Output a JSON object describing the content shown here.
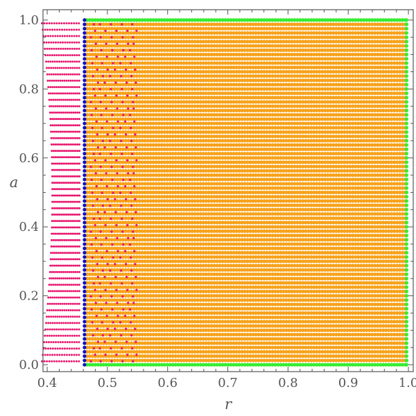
{
  "chart_data": {
    "type": "scatter",
    "xlabel": "r",
    "ylabel": "a",
    "xlim": [
      0.393,
      1.008
    ],
    "ylim": [
      -0.02,
      1.03
    ],
    "grid": false,
    "x_ticks": [
      0.4,
      0.5,
      0.6,
      0.7,
      0.8,
      0.9,
      1.0
    ],
    "x_tick_labels": [
      "0.4",
      "0.5",
      "0.6",
      "0.7",
      "0.8",
      "0.9",
      "1.0"
    ],
    "y_ticks": [
      0.0,
      0.2,
      0.4,
      0.6,
      0.8,
      1.0
    ],
    "y_tick_labels": [
      "0.0",
      "0.2",
      "0.4",
      "0.6",
      "0.8",
      "1.0"
    ],
    "colors": {
      "frame": "#555555",
      "orange_region": "#f7a21b",
      "blue_boundary": "#1010c8",
      "green_boundary": "#33ee33",
      "magenta_points": "#e8186e"
    },
    "regions": [
      {
        "color_key": "orange_region",
        "description_shape": "filled rectangle",
        "r_range": [
          0.466,
          0.997
        ],
        "a_range": [
          0.0,
          1.0
        ],
        "r_step": 0.0046,
        "a_step": 0.0125
      },
      {
        "color_key": "blue_boundary",
        "description_shape": "vertical line",
        "r": 0.462,
        "a_range": [
          0.0,
          1.0
        ],
        "a_step": 0.0125
      },
      {
        "color_key": "green_boundary",
        "description_shape": "line",
        "segments": [
          {
            "r_range": [
              0.466,
              0.997
            ],
            "a": 1.0
          },
          {
            "r_range": [
              0.466,
              0.997
            ],
            "a": 0.0
          },
          {
            "r": 0.997,
            "a_range": [
              0.0,
              1.0
            ]
          }
        ],
        "step": 0.0046
      },
      {
        "color_key": "magenta_points",
        "description_shape": "dotted curves",
        "r_range": [
          0.396,
          0.458
        ],
        "a_range": [
          0.01,
          0.99
        ],
        "curve_count": 16,
        "bow": 0.018
      },
      {
        "color_key": "magenta_points",
        "description_shape": "scattered columns",
        "r_values": [
          0.475,
          0.482,
          0.49,
          0.498,
          0.507,
          0.515,
          0.524,
          0.532,
          0.54,
          0.546
        ],
        "a_range": [
          0.01,
          0.99
        ]
      }
    ]
  }
}
